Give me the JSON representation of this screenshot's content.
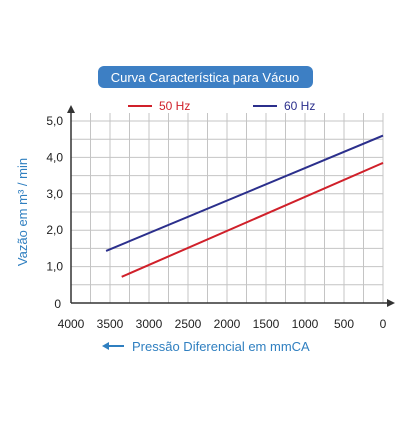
{
  "chart_data": {
    "type": "line",
    "title": "Curva Característica para Vácuo",
    "xlabel": "Pressão Diferencial em mmCA",
    "ylabel": "Vazão em m³ / min",
    "xlim": [
      4000,
      0
    ],
    "ylim": [
      0,
      5
    ],
    "x_ticks": [
      "4000",
      "3500",
      "3000",
      "2500",
      "2000",
      "1500",
      "1000",
      "500",
      "0"
    ],
    "x_tick_values": [
      4000,
      3500,
      3000,
      2500,
      2000,
      1500,
      1000,
      500,
      0
    ],
    "y_ticks": [
      "0",
      "1,0",
      "2,0",
      "3,0",
      "4,0",
      "5,0"
    ],
    "y_tick_values": [
      0,
      1,
      2,
      3,
      4,
      5
    ],
    "grid": true,
    "legend_position": "top",
    "series": [
      {
        "name": "50 Hz",
        "color": "#d0202a",
        "points": [
          [
            3350,
            0.72
          ],
          [
            0,
            3.85
          ]
        ]
      },
      {
        "name": "60 Hz",
        "color": "#2b2f8c",
        "points": [
          [
            3550,
            1.43
          ],
          [
            0,
            4.6
          ]
        ]
      }
    ],
    "colors": {
      "title_bg": "#3d7fc4",
      "title_text": "#ffffff",
      "axis_label": "#2f7fc0",
      "grid": "#c4c4c4",
      "axis": "#333333"
    }
  }
}
